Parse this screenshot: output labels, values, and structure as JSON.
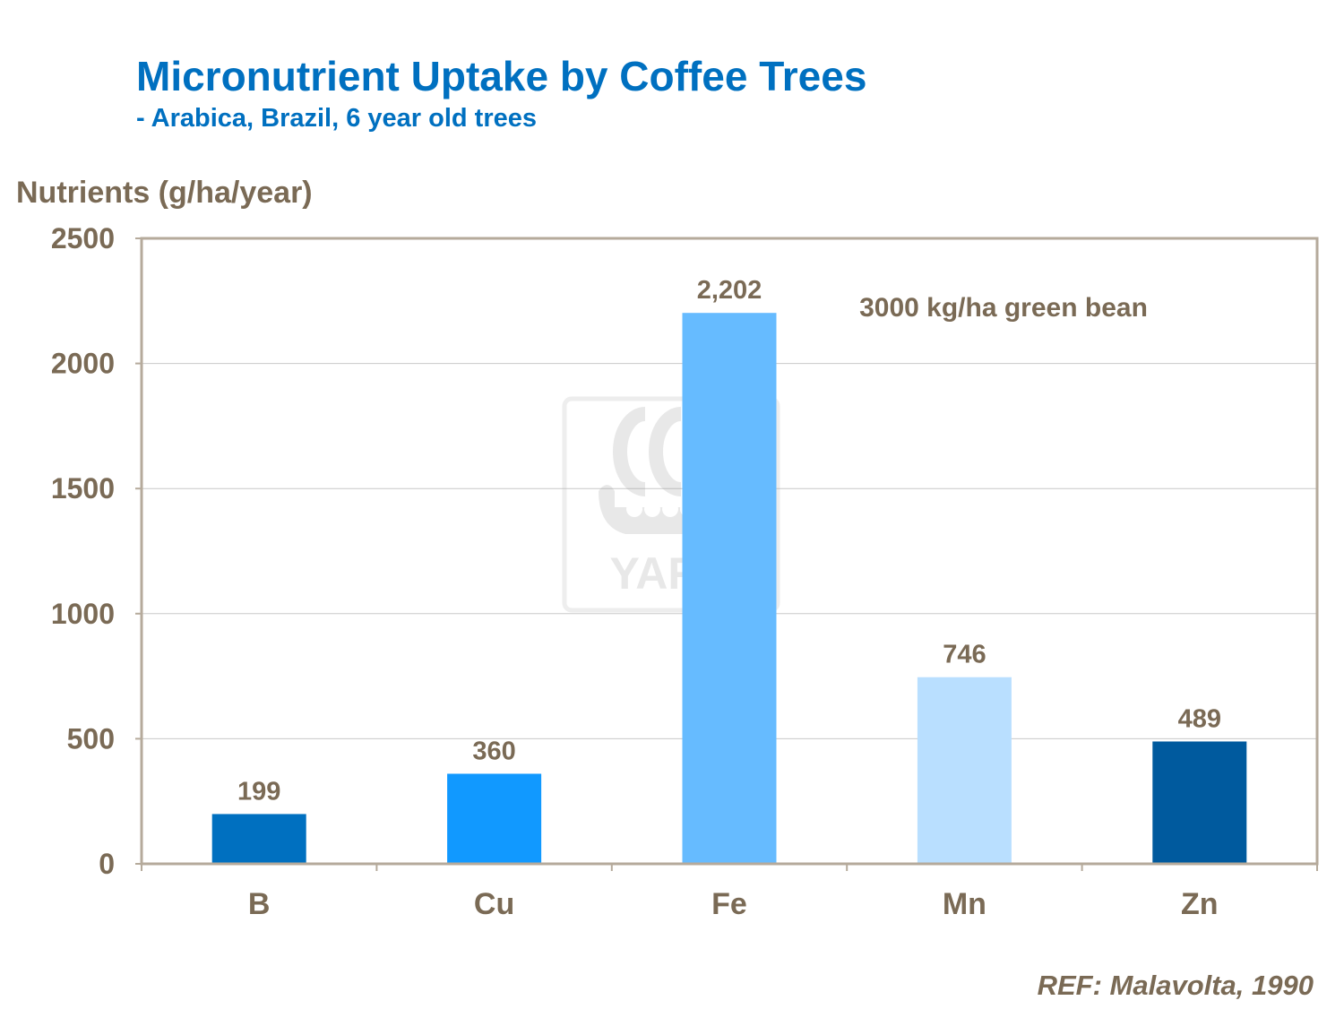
{
  "title": "Micronutrient Uptake by Coffee Trees",
  "subtitle": "- Arabica, Brazil, 6 year old trees",
  "reference": "REF: Malavolta, 1990",
  "watermark_text": "YARA",
  "colors": {
    "title": "#0070c0",
    "text": "#7a6a55",
    "axis": "#b5aa9b",
    "grid": "#c8c8c8"
  },
  "chart_data": {
    "type": "bar",
    "ylabel": "Nutrients (g/ha/year)",
    "xlabel": "",
    "categories": [
      "B",
      "Cu",
      "Fe",
      "Mn",
      "Zn"
    ],
    "values": [
      199,
      360,
      2202,
      746,
      489
    ],
    "data_labels": [
      "199",
      "360",
      "2,202",
      "746",
      "489"
    ],
    "bar_colors": [
      "#0070c0",
      "#1199ff",
      "#66bbff",
      "#b9dfff",
      "#005a9e"
    ],
    "ylim": [
      0,
      2500
    ],
    "yticks": [
      0,
      500,
      1000,
      1500,
      2000,
      2500
    ],
    "grid": true,
    "annotation": "3000 kg/ha green bean"
  }
}
